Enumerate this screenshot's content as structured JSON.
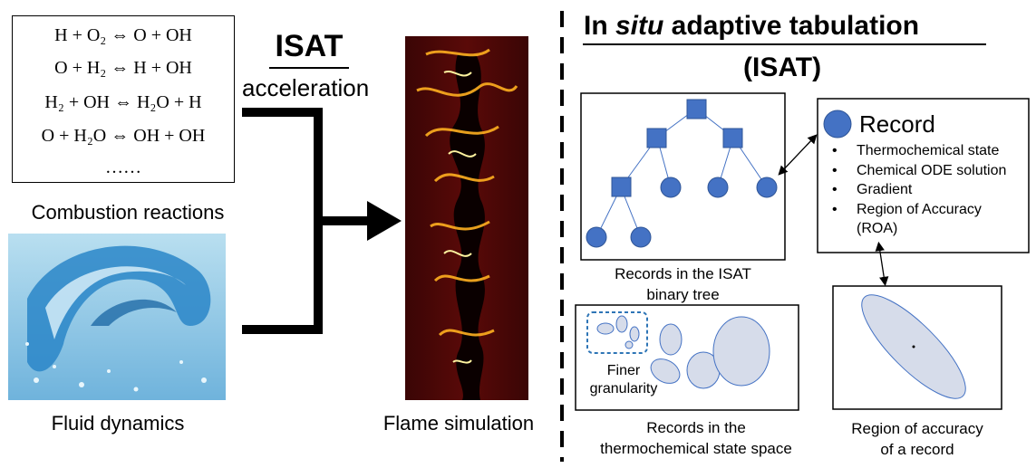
{
  "reactions": [
    "H + O₂ ⇔ O + OH",
    "O + H₂ ⇔ H + OH",
    "H₂ + OH ⇔ H₂O + H",
    "O + H₂O ⇔ OH + OH",
    "……"
  ],
  "left": {
    "combustion_label": "Combustion reactions",
    "fluid_label": "Fluid dynamics"
  },
  "middle": {
    "isat_label": "ISAT",
    "acceleration_label": "acceleration",
    "flame_label": "Flame simulation"
  },
  "right": {
    "title_line1_pre": "In ",
    "title_line1_italic": "situ",
    "title_line1_post": " adaptive tabulation",
    "title_line2": "(ISAT)",
    "tree_caption": [
      "Records in the ISAT",
      "binary tree"
    ],
    "record_title": "Record",
    "record_items": [
      "Thermochemical state",
      "Chemical ODE solution",
      "Gradient",
      "Region of Accuracy",
      "(ROA)"
    ],
    "finer_label": [
      "Finer",
      "granularity"
    ],
    "state_space_caption": [
      "Records in the",
      "thermochemical state space"
    ],
    "roa_caption": [
      "Region of accuracy",
      "of a record"
    ]
  },
  "colors": {
    "node_fill": "#4472c4",
    "node_stroke": "#2f5597",
    "ellipse_fill": "#d6dcea",
    "ellipse_stroke": "#4472c4",
    "dashed_highlight": "#2e75b6"
  }
}
